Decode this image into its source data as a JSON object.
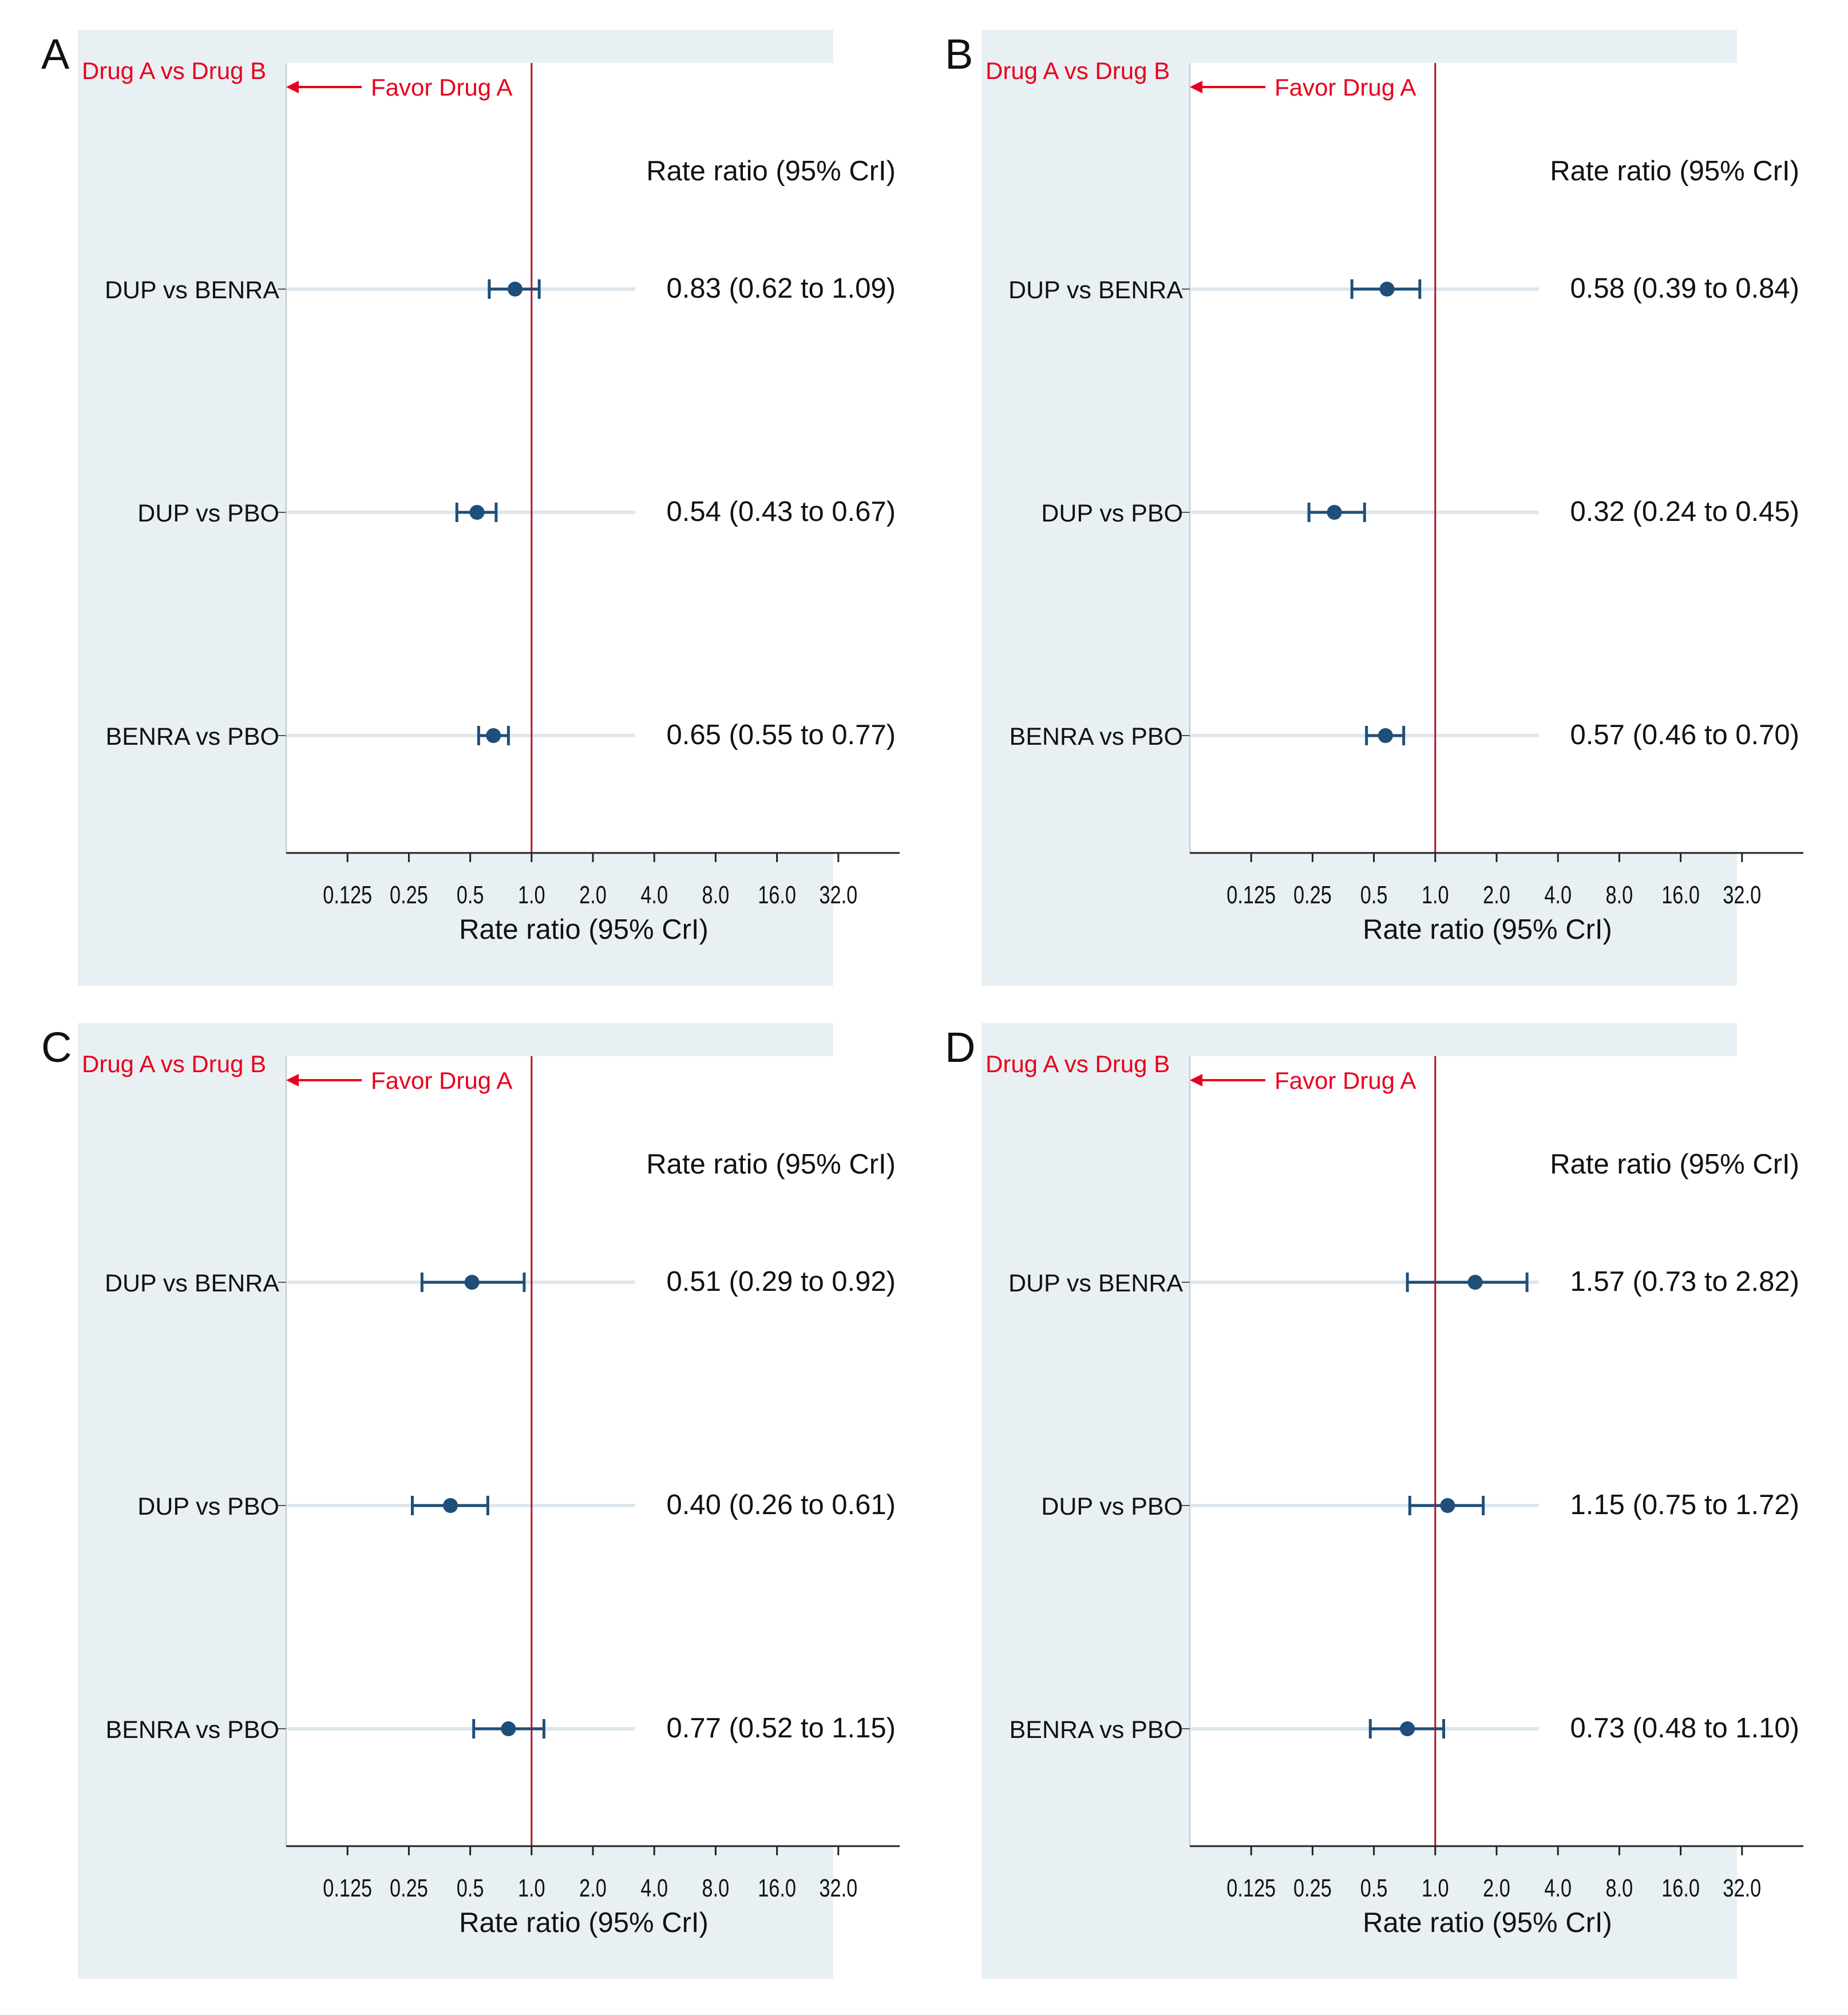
{
  "chart_data": [
    {
      "type": "forest",
      "panel_label": "A",
      "header_label": "Drug A vs Drug B",
      "favor_label": "Favor Drug A",
      "column_title": "Rate ratio (95% CrI)",
      "xlabel": "Rate ratio (95% CrI)",
      "x_scale": "log2",
      "xlim": [
        0.0625,
        64
      ],
      "x_ticks": [
        "0.125",
        "0.25",
        "0.5",
        "1.0",
        "2.0",
        "4.0",
        "8.0",
        "16.0",
        "32.0"
      ],
      "reference_line": 1.0,
      "rows": [
        {
          "label": "DUP vs BENRA",
          "estimate": 0.83,
          "lower": 0.62,
          "upper": 1.09,
          "text": "0.83 (0.62 to 1.09)"
        },
        {
          "label": "DUP vs PBO",
          "estimate": 0.54,
          "lower": 0.43,
          "upper": 0.67,
          "text": "0.54 (0.43 to 0.67)"
        },
        {
          "label": "BENRA vs PBO",
          "estimate": 0.65,
          "lower": 0.55,
          "upper": 0.77,
          "text": "0.65 (0.55 to 0.77)"
        }
      ]
    },
    {
      "type": "forest",
      "panel_label": "B",
      "header_label": "Drug A vs Drug B",
      "favor_label": "Favor Drug A",
      "column_title": "Rate ratio (95% CrI)",
      "xlabel": "Rate ratio (95% CrI)",
      "x_scale": "log2",
      "xlim": [
        0.0625,
        64
      ],
      "x_ticks": [
        "0.125",
        "0.25",
        "0.5",
        "1.0",
        "2.0",
        "4.0",
        "8.0",
        "16.0",
        "32.0"
      ],
      "reference_line": 1.0,
      "rows": [
        {
          "label": "DUP vs BENRA",
          "estimate": 0.58,
          "lower": 0.39,
          "upper": 0.84,
          "text": "0.58 (0.39 to 0.84)"
        },
        {
          "label": "DUP vs PBO",
          "estimate": 0.32,
          "lower": 0.24,
          "upper": 0.45,
          "text": "0.32 (0.24 to 0.45)"
        },
        {
          "label": "BENRA vs PBO",
          "estimate": 0.57,
          "lower": 0.46,
          "upper": 0.7,
          "text": "0.57 (0.46 to 0.70)"
        }
      ]
    },
    {
      "type": "forest",
      "panel_label": "C",
      "header_label": "Drug A vs Drug B",
      "favor_label": "Favor Drug A",
      "column_title": "Rate ratio (95% CrI)",
      "xlabel": "Rate ratio (95% CrI)",
      "x_scale": "log2",
      "xlim": [
        0.0625,
        64
      ],
      "x_ticks": [
        "0.125",
        "0.25",
        "0.5",
        "1.0",
        "2.0",
        "4.0",
        "8.0",
        "16.0",
        "32.0"
      ],
      "reference_line": 1.0,
      "rows": [
        {
          "label": "DUP vs BENRA",
          "estimate": 0.51,
          "lower": 0.29,
          "upper": 0.92,
          "text": "0.51 (0.29 to 0.92)"
        },
        {
          "label": "DUP vs PBO",
          "estimate": 0.4,
          "lower": 0.26,
          "upper": 0.61,
          "text": "0.40 (0.26 to 0.61)"
        },
        {
          "label": "BENRA vs PBO",
          "estimate": 0.77,
          "lower": 0.52,
          "upper": 1.15,
          "text": "0.77 (0.52 to 1.15)"
        }
      ]
    },
    {
      "type": "forest",
      "panel_label": "D",
      "header_label": "Drug A vs Drug B",
      "favor_label": "Favor Drug A",
      "column_title": "Rate ratio (95% CrI)",
      "xlabel": "Rate ratio (95% CrI)",
      "x_scale": "log2",
      "xlim": [
        0.0625,
        64
      ],
      "x_ticks": [
        "0.125",
        "0.25",
        "0.5",
        "1.0",
        "2.0",
        "4.0",
        "8.0",
        "16.0",
        "32.0"
      ],
      "reference_line": 1.0,
      "rows": [
        {
          "label": "DUP vs BENRA",
          "estimate": 1.57,
          "lower": 0.73,
          "upper": 2.82,
          "text": "1.57 (0.73 to 2.82)"
        },
        {
          "label": "DUP vs PBO",
          "estimate": 1.15,
          "lower": 0.75,
          "upper": 1.72,
          "text": "1.15 (0.75 to 1.72)"
        },
        {
          "label": "BENRA vs PBO",
          "estimate": 0.73,
          "lower": 0.48,
          "upper": 1.1,
          "text": "0.73 (0.48 to 1.10)"
        }
      ]
    }
  ],
  "colors": {
    "panel_background": "#e9f0f3",
    "plot_background": "#ffffff",
    "marker": "#1f4e79",
    "reference_line": "#b0132a",
    "annotation": "#e8001c",
    "axis": "#222222",
    "row_guide": "#dde7ed"
  }
}
